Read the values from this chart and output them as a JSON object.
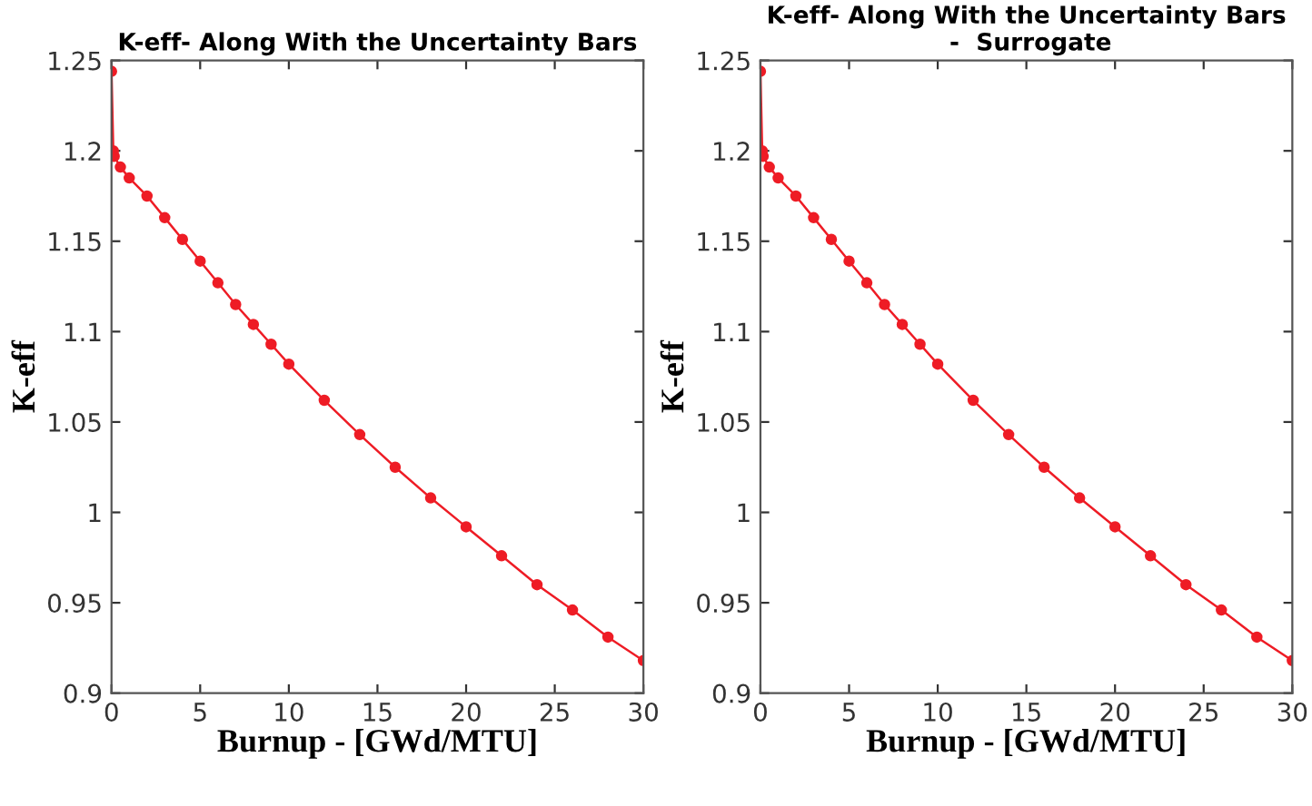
{
  "chart_data": [
    {
      "type": "line",
      "title": "K-eff- Along With the Uncertainty Bars",
      "xlabel": "Burnup - [GWd/MTU]",
      "ylabel": "K-eff",
      "x": [
        0,
        0.1,
        0.15,
        0.5,
        1,
        2,
        3,
        4,
        5,
        6,
        7,
        8,
        9,
        10,
        12,
        14,
        16,
        18,
        20,
        22,
        24,
        26,
        28,
        30
      ],
      "series": [
        {
          "color": "#ee1c25",
          "values": [
            1.244,
            1.2,
            1.197,
            1.191,
            1.185,
            1.175,
            1.163,
            1.151,
            1.139,
            1.127,
            1.115,
            1.104,
            1.093,
            1.082,
            1.062,
            1.043,
            1.025,
            1.008,
            0.992,
            0.976,
            0.96,
            0.946,
            0.931,
            0.918
          ]
        }
      ],
      "xlim": [
        0,
        30
      ],
      "ylim": [
        0.9,
        1.25
      ],
      "xticks": [
        0,
        5,
        10,
        15,
        20,
        25,
        30
      ],
      "yticks": [
        0.9,
        0.95,
        1,
        1.05,
        1.1,
        1.15,
        1.2,
        1.25
      ],
      "marker": "circle",
      "line_style": "solid"
    },
    {
      "type": "line",
      "title": "K-eff- Along With the Uncertainty Bars\n -  Surrogate",
      "xlabel": "Burnup - [GWd/MTU]",
      "ylabel": "K-eff",
      "x": [
        0,
        0.1,
        0.15,
        0.5,
        1,
        2,
        3,
        4,
        5,
        6,
        7,
        8,
        9,
        10,
        12,
        14,
        16,
        18,
        20,
        22,
        24,
        26,
        28,
        30
      ],
      "series": [
        {
          "color": "#ee1c25",
          "values": [
            1.244,
            1.2,
            1.197,
            1.191,
            1.185,
            1.175,
            1.163,
            1.151,
            1.139,
            1.127,
            1.115,
            1.104,
            1.093,
            1.082,
            1.062,
            1.043,
            1.025,
            1.008,
            0.992,
            0.976,
            0.96,
            0.946,
            0.931,
            0.918
          ]
        }
      ],
      "xlim": [
        0,
        30
      ],
      "ylim": [
        0.9,
        1.25
      ],
      "xticks": [
        0,
        5,
        10,
        15,
        20,
        25,
        30
      ],
      "yticks": [
        0.9,
        0.95,
        1,
        1.05,
        1.1,
        1.15,
        1.2,
        1.25
      ],
      "marker": "circle",
      "line_style": "solid"
    }
  ]
}
